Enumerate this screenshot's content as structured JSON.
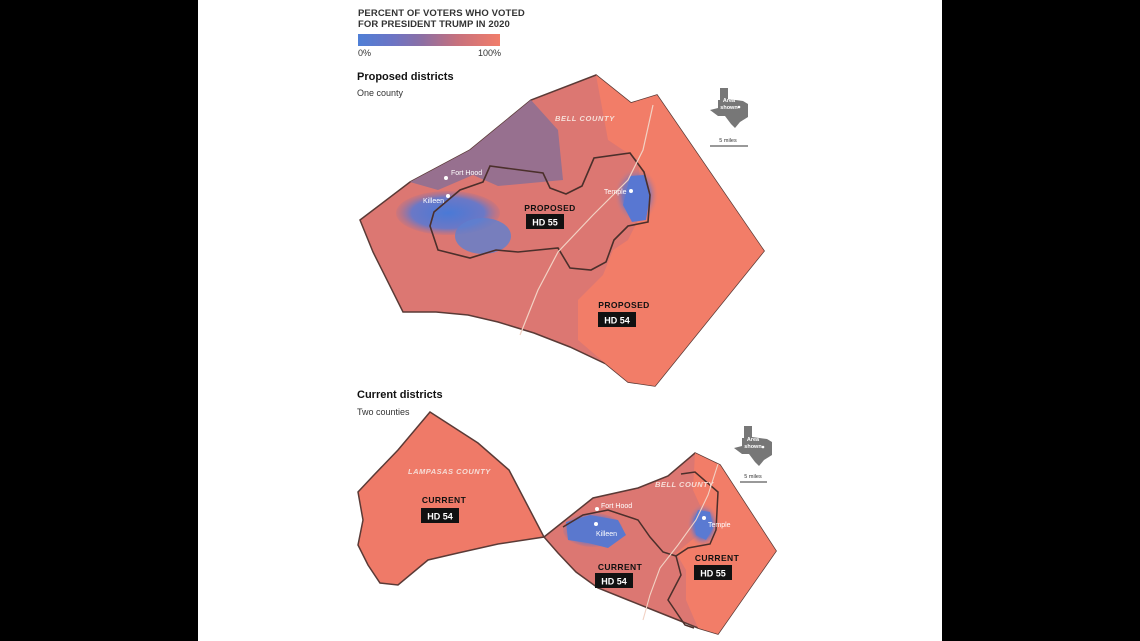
{
  "legend": {
    "title_line1": "PERCENT OF VOTERS WHO VOTED",
    "title_line2": "FOR PRESIDENT TRUMP IN 2020",
    "min_label": "0%",
    "max_label": "100%",
    "color_low": "#4f7fd6",
    "color_high": "#f17d6a"
  },
  "proposed": {
    "title": "Proposed districts",
    "subtitle": "One county",
    "county_label": "BELL COUNTY",
    "inset_label_line1": "Area",
    "inset_label_line2": "shown",
    "scale_label": "5 miles",
    "cities": [
      "Fort Hood",
      "Killeen",
      "Temple"
    ],
    "districts": [
      {
        "word": "PROPOSED",
        "code": "HD 55"
      },
      {
        "word": "PROPOSED",
        "code": "HD 54"
      }
    ]
  },
  "current": {
    "title": "Current districts",
    "subtitle": "Two counties",
    "county_label_west": "LAMPASAS COUNTY",
    "county_label_east": "BELL COUNTY",
    "inset_label_line1": "Area",
    "inset_label_line2": "shown",
    "scale_label": "5 miles",
    "cities": [
      "Fort Hood",
      "Killeen",
      "Temple"
    ],
    "districts": [
      {
        "word": "CURRENT",
        "code": "HD 54"
      },
      {
        "word": "CURRENT",
        "code": "HD 54"
      },
      {
        "word": "CURRENT",
        "code": "HD 55"
      }
    ]
  }
}
